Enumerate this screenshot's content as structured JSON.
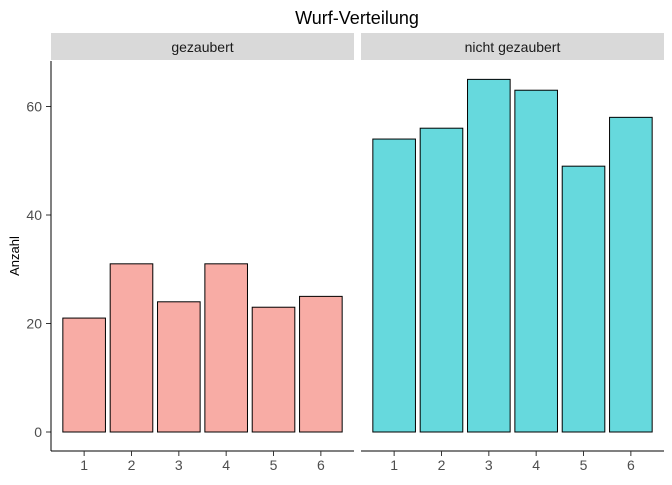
{
  "chart_data": {
    "type": "bar",
    "title": "Wurf-Verteilung",
    "xlabel": "",
    "ylabel": "Anzahl",
    "ylim": [
      0,
      68
    ],
    "yticks": [
      0,
      20,
      40,
      60
    ],
    "categories": [
      "1",
      "2",
      "3",
      "4",
      "5",
      "6"
    ],
    "grid": false,
    "facets": [
      {
        "label": "gezaubert",
        "color": "#F8ACA5",
        "values": [
          21,
          31,
          24,
          31,
          23,
          25
        ]
      },
      {
        "label": "nicht gezaubert",
        "color": "#66D9DD",
        "values": [
          54,
          56,
          65,
          63,
          49,
          58
        ]
      }
    ],
    "colors": {
      "strip": "#D9D9D9",
      "bar_outline": "#000000",
      "tick_text": "#4D4D4D"
    }
  }
}
